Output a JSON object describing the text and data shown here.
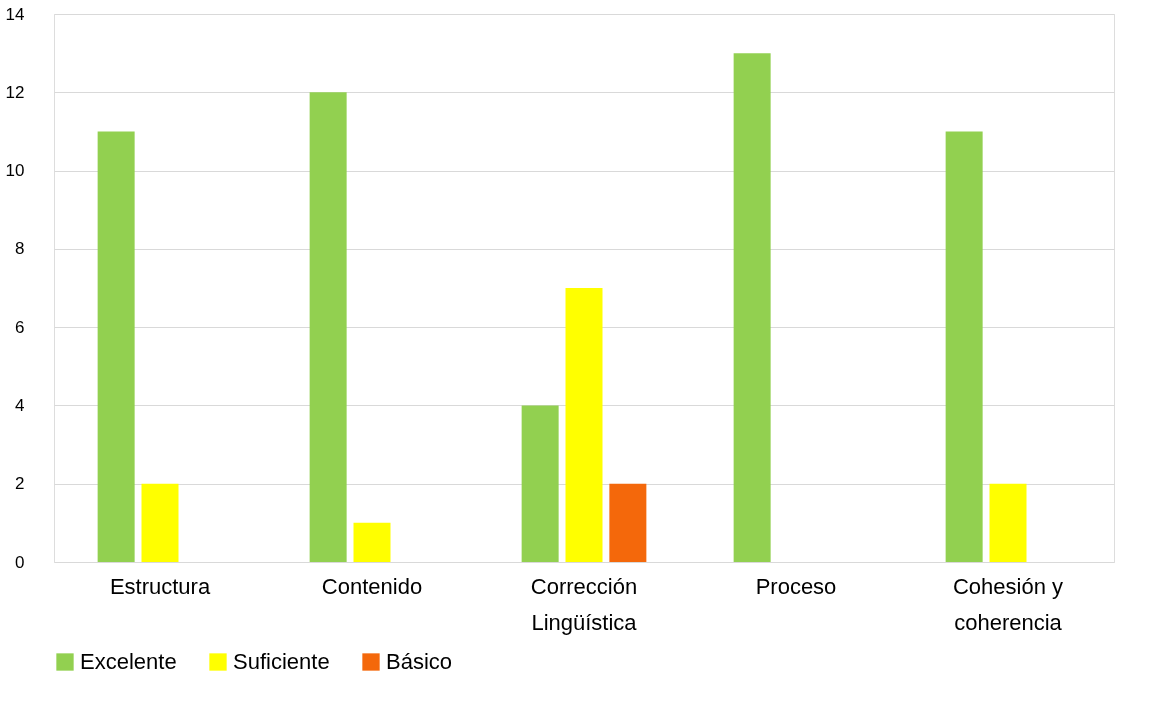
{
  "chart_data": {
    "type": "bar",
    "categories": [
      "Estructura",
      "Contenido",
      "Corrección Lingüística",
      "Proceso",
      "Cohesión y coherencia"
    ],
    "series": [
      {
        "name": "Excelente",
        "color": "#92d050",
        "values": [
          11,
          12,
          4,
          13,
          11
        ]
      },
      {
        "name": "Suficiente",
        "color": "#ffff00",
        "values": [
          2,
          1,
          7,
          null,
          2
        ]
      },
      {
        "name": "Básico",
        "color": "#f4680b",
        "values": [
          null,
          null,
          2,
          null,
          null
        ]
      }
    ],
    "ylim": [
      0,
      14
    ],
    "yticks": [
      0,
      2,
      4,
      6,
      8,
      10,
      12,
      14
    ],
    "grid": "y",
    "legend": "bottom"
  }
}
